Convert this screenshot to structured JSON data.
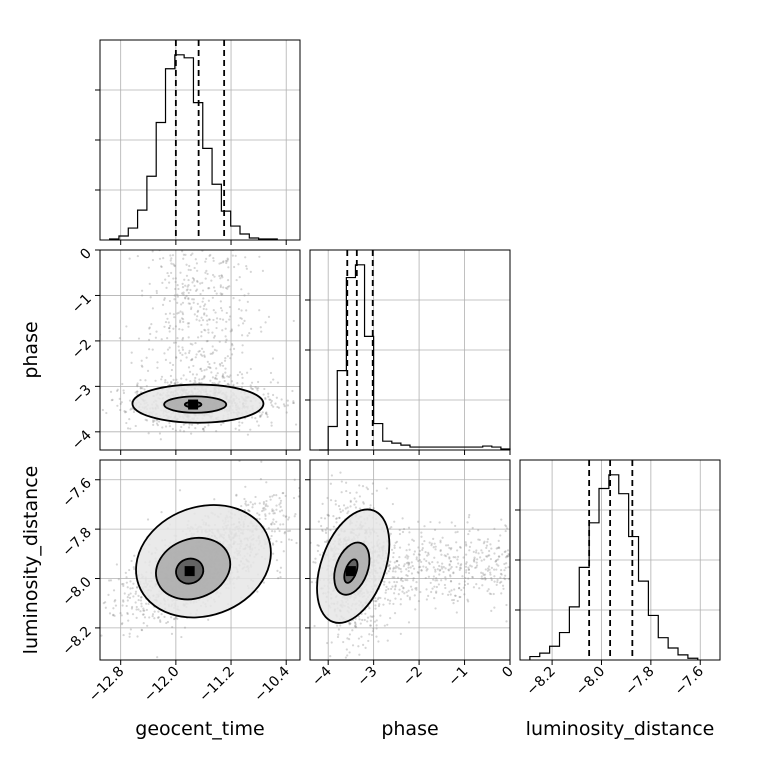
{
  "chart_data": {
    "type": "corner",
    "parameters": [
      "geocent_time",
      "phase",
      "luminosity_distance"
    ],
    "grid": true,
    "axes": {
      "geocent_time": {
        "label": "geocent_time",
        "range": [
          -13.1,
          -10.2
        ],
        "ticks": [
          -12.8,
          -12.0,
          -11.2,
          -10.4
        ],
        "tick_labels": [
          "−12.8",
          "−12.0",
          "−11.2",
          "−10.4"
        ],
        "quantiles": [
          -12.0,
          -11.67,
          -11.3
        ]
      },
      "phase": {
        "label": "phase",
        "range": [
          -4.4,
          0.0
        ],
        "ticks": [
          -4,
          -3,
          -2,
          -1,
          0
        ],
        "tick_labels": [
          "−4",
          "−3",
          "−2",
          "−1",
          "0"
        ],
        "quantiles": [
          -3.58,
          -3.37,
          -3.02
        ]
      },
      "luminosity_distance": {
        "label": "luminosity_distance",
        "range": [
          -8.33,
          -7.52
        ],
        "ticks": [
          -8.2,
          -8.0,
          -7.8,
          -7.6
        ],
        "tick_labels": [
          "−8.2",
          "−8.0",
          "−7.8",
          "−7.6"
        ],
        "quantiles": [
          -8.05,
          -7.965,
          -7.875
        ]
      }
    },
    "histograms": {
      "geocent_time": {
        "bins": [
          -12.96,
          -12.825,
          -12.69,
          -12.555,
          -12.42,
          -12.285,
          -12.15,
          -12.015,
          -11.88,
          -11.745,
          -11.61,
          -11.475,
          -11.34,
          -11.205,
          -11.07,
          -10.935,
          -10.8,
          -10.665,
          -10.53
        ],
        "counts": [
          1,
          4,
          12,
          30,
          64,
          118,
          172,
          186,
          183,
          138,
          92,
          56,
          29,
          14,
          6,
          2,
          1,
          1
        ]
      },
      "phase": {
        "bins": [
          -4.2,
          -4.0,
          -3.8,
          -3.6,
          -3.4,
          -3.2,
          -3.0,
          -2.8,
          -2.6,
          -2.4,
          -2.2,
          -2.0,
          -1.8,
          -1.6,
          -1.4,
          -1.2,
          -1.0,
          -0.8,
          -0.6,
          -0.4,
          -0.2,
          0.0
        ],
        "counts": [
          0.0,
          2.4,
          8.1,
          17.6,
          18.9,
          11.6,
          2.7,
          0.9,
          0.7,
          0.5,
          0.3,
          0.3,
          0.3,
          0.3,
          0.3,
          0.3,
          0.3,
          0.3,
          0.4,
          0.3,
          0.1
        ]
      },
      "luminosity_distance": {
        "bins": [
          -8.29,
          -8.25,
          -8.21,
          -8.17,
          -8.13,
          -8.09,
          -8.05,
          -8.01,
          -7.97,
          -7.93,
          -7.89,
          -7.85,
          -7.81,
          -7.77,
          -7.73,
          -7.69,
          -7.65,
          -7.61
        ],
        "counts": [
          0.2,
          0.4,
          0.8,
          1.6,
          3.1,
          5.4,
          8.0,
          10.0,
          10.8,
          9.7,
          7.2,
          4.6,
          2.6,
          1.3,
          0.7,
          0.3,
          0.1
        ]
      }
    },
    "pairs": [
      {
        "x": "geocent_time",
        "y": "phase",
        "density_peak": [
          -11.75,
          -3.4
        ],
        "contours": [
          {
            "cx": -11.75,
            "cy": -3.4,
            "rx": 0.12,
            "ry": 0.06
          },
          {
            "cx": -11.72,
            "cy": -3.4,
            "rx": 0.45,
            "ry": 0.18
          },
          {
            "cx": -11.68,
            "cy": -3.38,
            "rx": 0.95,
            "ry": 0.42
          }
        ]
      },
      {
        "x": "geocent_time",
        "y": "luminosity_distance",
        "density_peak": [
          -11.8,
          -7.97
        ],
        "contours": [
          {
            "cx": -11.8,
            "cy": -7.97,
            "rx": 0.2,
            "ry": 0.05
          },
          {
            "cx": -11.75,
            "cy": -7.96,
            "rx": 0.55,
            "ry": 0.12
          },
          {
            "cx": -11.6,
            "cy": -7.93,
            "rx": 1.0,
            "ry": 0.22
          }
        ]
      },
      {
        "x": "phase",
        "y": "luminosity_distance",
        "density_peak": [
          -3.5,
          -7.97
        ],
        "contours": [
          {
            "cx": -3.5,
            "cy": -7.97,
            "rx": 0.12,
            "ry": 0.05
          },
          {
            "cx": -3.48,
            "cy": -7.96,
            "rx": 0.35,
            "ry": 0.11
          },
          {
            "cx": -3.45,
            "cy": -7.95,
            "rx": 0.7,
            "ry": 0.24
          }
        ]
      }
    ]
  }
}
